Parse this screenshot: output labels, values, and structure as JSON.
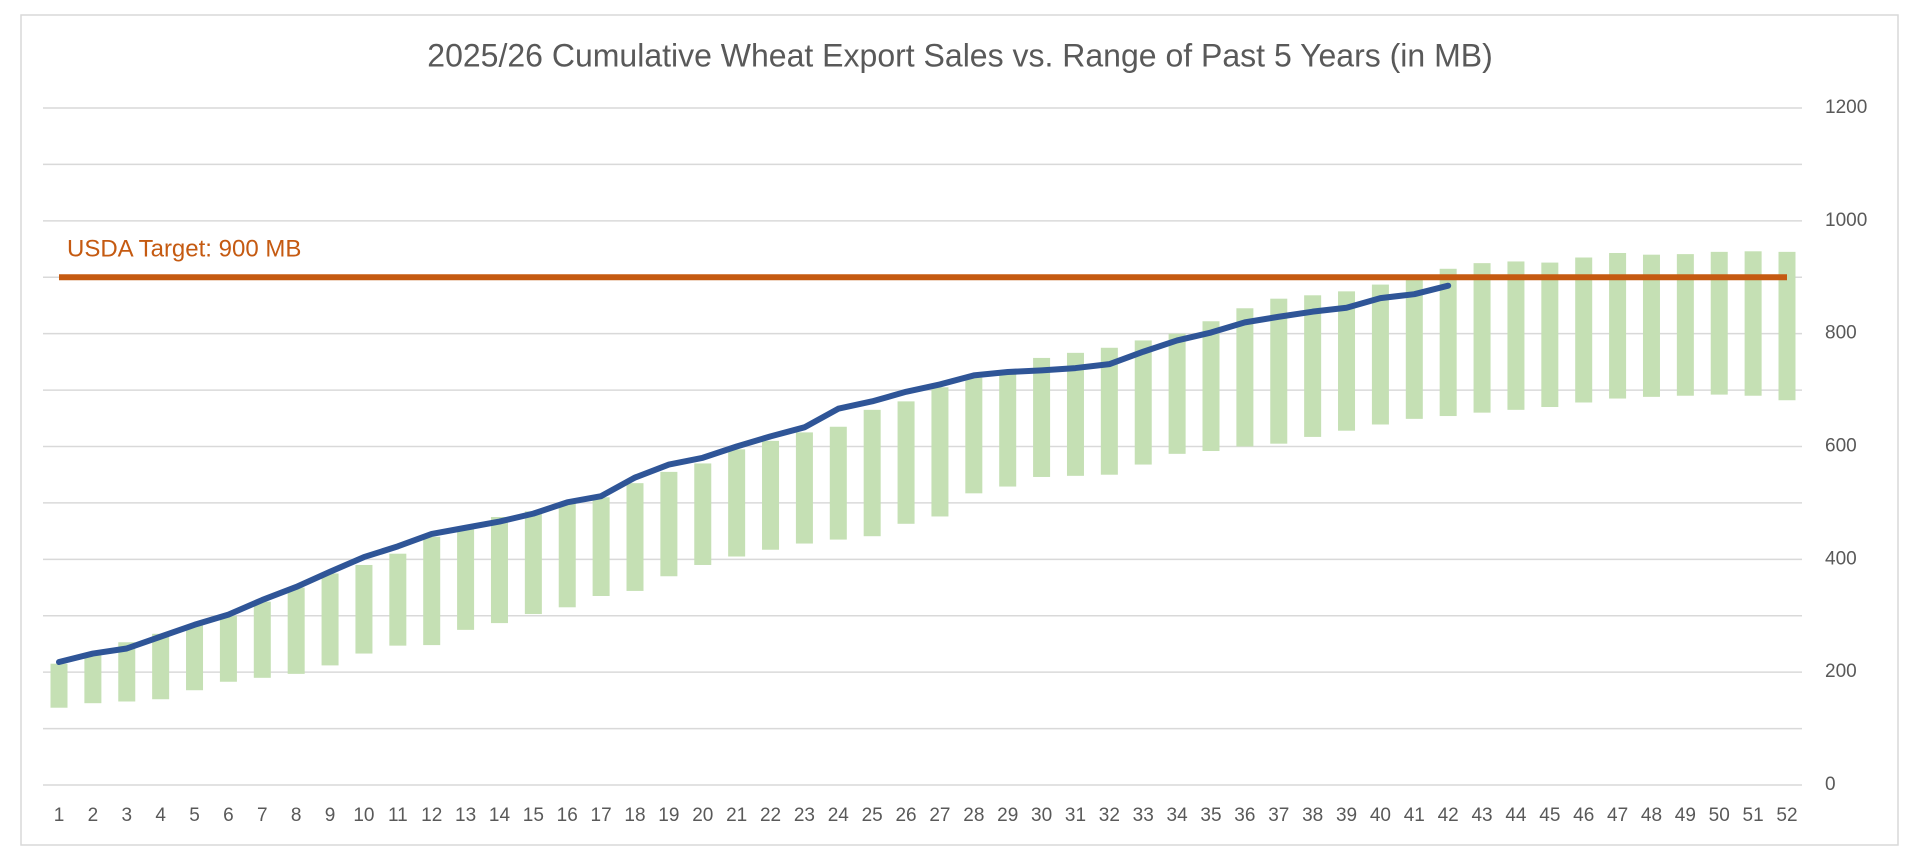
{
  "chart_data": {
    "type": "range-bar-line",
    "title": "2025/26 Cumulative Wheat Export Sales vs. Range of Past 5 Years (in MB)",
    "categories": [
      "1",
      "2",
      "3",
      "4",
      "5",
      "6",
      "7",
      "8",
      "9",
      "10",
      "11",
      "12",
      "13",
      "14",
      "15",
      "16",
      "17",
      "18",
      "19",
      "20",
      "21",
      "22",
      "23",
      "24",
      "25",
      "26",
      "27",
      "28",
      "29",
      "30",
      "31",
      "32",
      "33",
      "34",
      "35",
      "36",
      "37",
      "38",
      "39",
      "40",
      "41",
      "42",
      "43",
      "44",
      "45",
      "46",
      "47",
      "48",
      "49",
      "50",
      "51",
      "52"
    ],
    "range": {
      "color": "#c5e0b4",
      "low": [
        137,
        145,
        148,
        152,
        168,
        183,
        190,
        197,
        212,
        233,
        247,
        248,
        275,
        287,
        303,
        315,
        335,
        344,
        370,
        390,
        405,
        417,
        428,
        435,
        441,
        463,
        476,
        517,
        529,
        546,
        548,
        550,
        568,
        587,
        592,
        600,
        605,
        617,
        628,
        639,
        649,
        654,
        660,
        665,
        670,
        678,
        685,
        688,
        690,
        692,
        690,
        682
      ],
      "high": [
        215,
        233,
        253,
        268,
        283,
        300,
        325,
        350,
        375,
        390,
        410,
        440,
        455,
        475,
        485,
        500,
        510,
        535,
        555,
        570,
        595,
        610,
        625,
        635,
        665,
        680,
        705,
        722,
        735,
        757,
        766,
        775,
        788,
        800,
        822,
        845,
        862,
        868,
        875,
        887,
        898,
        915,
        925,
        928,
        926,
        935,
        943,
        940,
        941,
        945,
        946,
        945
      ]
    },
    "line": {
      "color": "#2f5597",
      "values": [
        218,
        233,
        242,
        263,
        284,
        302,
        328,
        351,
        378,
        404,
        423,
        445,
        456,
        467,
        481,
        501,
        512,
        545,
        568,
        580,
        600,
        618,
        634,
        667,
        680,
        697,
        710,
        726,
        732,
        735,
        739,
        746,
        768,
        788,
        802,
        820,
        830,
        839,
        846,
        863,
        870,
        885
      ]
    },
    "target": {
      "value": 900,
      "label": "USDA Target: 900 MB",
      "color": "#c55a11"
    },
    "ylim": [
      0,
      1200
    ],
    "yticks": [
      0,
      200,
      400,
      600,
      800,
      1000,
      1200
    ],
    "minor_yticks": [
      100,
      300,
      500,
      700,
      900,
      1100
    ],
    "grid": true
  }
}
